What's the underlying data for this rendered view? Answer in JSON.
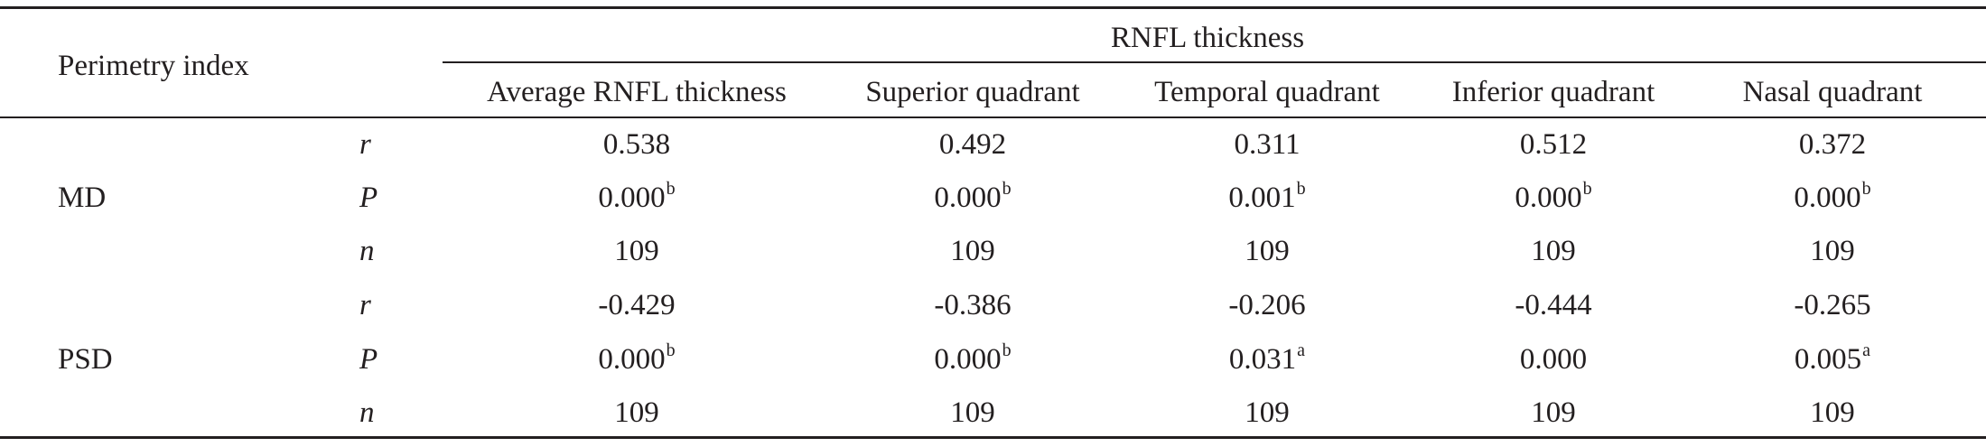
{
  "table": {
    "corner_header": "Perimetry index",
    "group_header": "RNFL thickness",
    "columns": [
      "Average RNFL thickness",
      "Superior quadrant",
      "Temporal quadrant",
      "Inferior quadrant",
      "Nasal quadrant"
    ],
    "groups": [
      {
        "label": "MD",
        "rows": [
          {
            "stat": "r",
            "cells": [
              {
                "v": "0.538",
                "s": ""
              },
              {
                "v": "0.492",
                "s": ""
              },
              {
                "v": "0.311",
                "s": ""
              },
              {
                "v": "0.512",
                "s": ""
              },
              {
                "v": "0.372",
                "s": ""
              }
            ]
          },
          {
            "stat": "P",
            "cells": [
              {
                "v": "0.000",
                "s": "b"
              },
              {
                "v": "0.000",
                "s": "b"
              },
              {
                "v": "0.001",
                "s": "b"
              },
              {
                "v": "0.000",
                "s": "b"
              },
              {
                "v": "0.000",
                "s": "b"
              }
            ]
          },
          {
            "stat": "n",
            "cells": [
              {
                "v": "109",
                "s": ""
              },
              {
                "v": "109",
                "s": ""
              },
              {
                "v": "109",
                "s": ""
              },
              {
                "v": "109",
                "s": ""
              },
              {
                "v": "109",
                "s": ""
              }
            ]
          }
        ]
      },
      {
        "label": "PSD",
        "rows": [
          {
            "stat": "r",
            "cells": [
              {
                "v": "-0.429",
                "s": ""
              },
              {
                "v": "-0.386",
                "s": ""
              },
              {
                "v": "-0.206",
                "s": ""
              },
              {
                "v": "-0.444",
                "s": ""
              },
              {
                "v": "-0.265",
                "s": ""
              }
            ]
          },
          {
            "stat": "P",
            "cells": [
              {
                "v": "0.000",
                "s": "b"
              },
              {
                "v": "0.000",
                "s": "b"
              },
              {
                "v": "0.031",
                "s": "a"
              },
              {
                "v": "0.000",
                "s": ""
              },
              {
                "v": "0.005",
                "s": "a"
              }
            ]
          },
          {
            "stat": "n",
            "cells": [
              {
                "v": "109",
                "s": ""
              },
              {
                "v": "109",
                "s": ""
              },
              {
                "v": "109",
                "s": ""
              },
              {
                "v": "109",
                "s": ""
              },
              {
                "v": "109",
                "s": ""
              }
            ]
          }
        ]
      }
    ]
  }
}
